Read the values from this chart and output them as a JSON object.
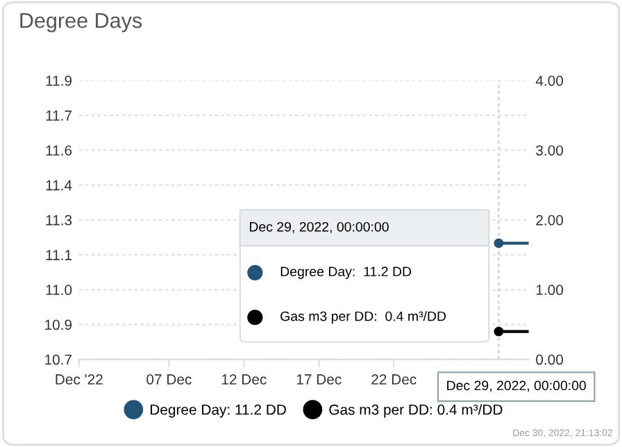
{
  "chart_data": {
    "type": "line",
    "title": "Degree Days",
    "xlim": [
      "2022-12-01",
      "2022-12-31"
    ],
    "xticks": [
      {
        "value": "2022-12-01",
        "label": "Dec '22"
      },
      {
        "value": "2022-12-07",
        "label": "07 Dec"
      },
      {
        "value": "2022-12-12",
        "label": "12 Dec"
      },
      {
        "value": "2022-12-17",
        "label": "17 Dec"
      },
      {
        "value": "2022-12-22",
        "label": "22 Dec"
      }
    ],
    "ylim": [
      10.7,
      11.9
    ],
    "yticks": [
      10.7,
      {
        "value": 10.85,
        "label": "10.9"
      },
      {
        "value": 11.0,
        "label": "11.0"
      },
      {
        "value": 11.15,
        "label": "11.1"
      },
      11.3,
      {
        "value": 11.45,
        "label": "11.4"
      },
      11.6,
      {
        "value": 11.75,
        "label": "11.7"
      },
      11.9
    ],
    "y2lim": [
      0,
      4
    ],
    "y2ticks": [
      {
        "value": 0,
        "label": "0.00"
      },
      {
        "value": 1,
        "label": "1.00"
      },
      {
        "value": 2,
        "label": "2.00"
      },
      {
        "value": 3,
        "label": "3.00"
      },
      {
        "value": 4,
        "label": "4.00"
      }
    ],
    "series": [
      {
        "name": "Degree Day: 11.2 DD",
        "color": "#235478",
        "x": [
          "2022-12-29",
          "2022-12-31"
        ],
        "values": [
          11.2,
          11.2
        ]
      },
      {
        "name": "Gas m3 per DD: 0.4 m³/DD",
        "color": "#000000",
        "axis": "y2",
        "x": [
          "2022-12-29",
          "2022-12-31"
        ],
        "values": [
          0.4,
          0.4
        ]
      }
    ],
    "marker": "circle",
    "grid": "y",
    "legend": "bottom",
    "ref_lines": [
      {
        "axis": "x",
        "value": "2022-12-29",
        "color": "#cccccc",
        "line_style": "dashed"
      }
    ],
    "annotations": [
      "Dec 29, 2022, 00:00:00",
      "Degree Day:  11.2 DD",
      "Gas m3 per DD:  0.4 m³/DD",
      "Dec 29, 2022, 00:00:00",
      "Dec 30, 2022, 21:13:02"
    ]
  }
}
